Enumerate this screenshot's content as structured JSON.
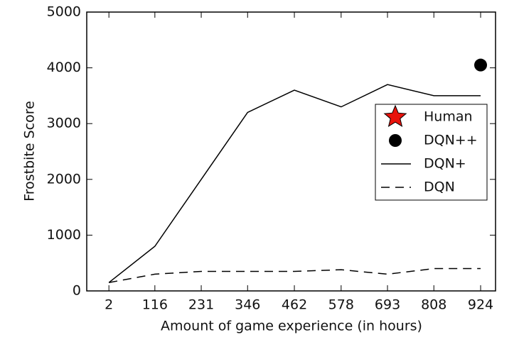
{
  "chart_data": {
    "type": "line",
    "x": [
      2,
      116,
      231,
      346,
      462,
      578,
      693,
      808,
      924
    ],
    "xlabel": "Amount of game experience (in hours)",
    "ylabel": "Frostbite Score",
    "xlim": [
      -53,
      961
    ],
    "xticks": [
      2,
      116,
      231,
      346,
      462,
      578,
      693,
      808,
      924
    ],
    "ylim": [
      0,
      5000
    ],
    "yticks": [
      0,
      1000,
      2000,
      3000,
      4000,
      5000
    ],
    "legend": "right",
    "series": [
      {
        "name": "Human",
        "color": "#e8120c",
        "marker": "star",
        "values": [
          null,
          null,
          null,
          null,
          null,
          null,
          null,
          null,
          null
        ]
      },
      {
        "name": "DQN++",
        "color": "#000000",
        "marker": "circle",
        "values": [
          null,
          null,
          null,
          null,
          null,
          null,
          null,
          null,
          4050
        ]
      },
      {
        "name": "DQN+",
        "color": "#000000",
        "linestyle": "solid",
        "values": [
          150,
          800,
          2000,
          3200,
          3600,
          3300,
          3700,
          3500,
          3500
        ]
      },
      {
        "name": "DQN",
        "color": "#000000",
        "linestyle": "dashed",
        "values": [
          150,
          300,
          350,
          350,
          350,
          380,
          300,
          400,
          400
        ]
      }
    ]
  }
}
